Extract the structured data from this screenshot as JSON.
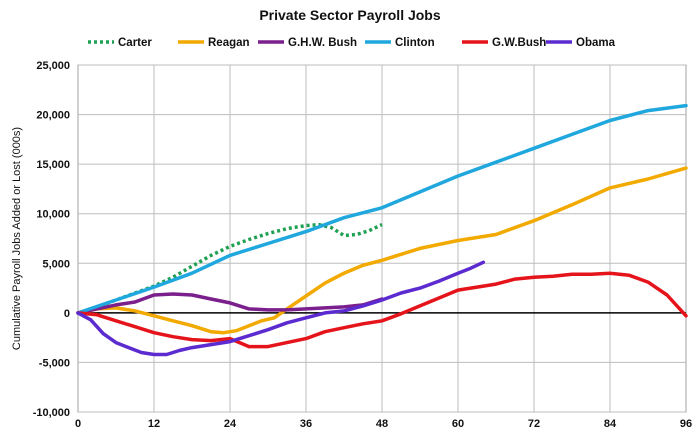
{
  "chart_data": {
    "type": "line",
    "title": "Private Sector Payroll Jobs",
    "ylabel": "Cumulative Payroll Jobs Added or Lost (000s)",
    "xlabel": "",
    "xlim": [
      0,
      96
    ],
    "ylim": [
      -10000,
      25000
    ],
    "x_ticks": [
      0,
      12,
      24,
      36,
      48,
      60,
      72,
      84,
      96
    ],
    "y_ticks": [
      -10000,
      -5000,
      0,
      5000,
      10000,
      15000,
      20000,
      25000
    ],
    "y_tick_labels": [
      "-10,000",
      "-5,000",
      "0",
      "5,000",
      "10,000",
      "15,000",
      "20,000",
      "25,000"
    ],
    "grid": true,
    "legend_position": "top",
    "series": [
      {
        "name": "Carter",
        "color": "#1fa052",
        "dashed": true,
        "points": [
          [
            0,
            0
          ],
          [
            3,
            600
          ],
          [
            6,
            1300
          ],
          [
            9,
            2000
          ],
          [
            12,
            2700
          ],
          [
            15,
            3600
          ],
          [
            18,
            4700
          ],
          [
            21,
            5800
          ],
          [
            24,
            6700
          ],
          [
            27,
            7400
          ],
          [
            30,
            8000
          ],
          [
            33,
            8500
          ],
          [
            36,
            8800
          ],
          [
            38,
            8900
          ],
          [
            40,
            8600
          ],
          [
            42,
            7800
          ],
          [
            44,
            7900
          ],
          [
            46,
            8300
          ],
          [
            48,
            8900
          ]
        ]
      },
      {
        "name": "Reagan",
        "color": "#f2a900",
        "dashed": false,
        "points": [
          [
            0,
            0
          ],
          [
            3,
            400
          ],
          [
            6,
            500
          ],
          [
            9,
            200
          ],
          [
            12,
            -300
          ],
          [
            15,
            -800
          ],
          [
            18,
            -1300
          ],
          [
            21,
            -1900
          ],
          [
            23,
            -2000
          ],
          [
            25,
            -1800
          ],
          [
            27,
            -1300
          ],
          [
            29,
            -800
          ],
          [
            31,
            -500
          ],
          [
            33,
            400
          ],
          [
            36,
            1700
          ],
          [
            39,
            3000
          ],
          [
            42,
            4000
          ],
          [
            45,
            4800
          ],
          [
            48,
            5300
          ],
          [
            54,
            6500
          ],
          [
            60,
            7300
          ],
          [
            66,
            7900
          ],
          [
            72,
            9300
          ],
          [
            78,
            10900
          ],
          [
            84,
            12600
          ],
          [
            90,
            13500
          ],
          [
            96,
            14600
          ]
        ]
      },
      {
        "name": "G.H.W. Bush",
        "color": "#7b1f8c",
        "dashed": false,
        "points": [
          [
            0,
            0
          ],
          [
            3,
            400
          ],
          [
            6,
            800
          ],
          [
            9,
            1100
          ],
          [
            12,
            1800
          ],
          [
            15,
            1900
          ],
          [
            18,
            1800
          ],
          [
            21,
            1400
          ],
          [
            24,
            1000
          ],
          [
            27,
            400
          ],
          [
            30,
            300
          ],
          [
            33,
            300
          ],
          [
            36,
            400
          ],
          [
            39,
            500
          ],
          [
            42,
            600
          ],
          [
            45,
            800
          ],
          [
            48,
            1400
          ]
        ]
      },
      {
        "name": "Clinton",
        "color": "#1fa7de",
        "dashed": false,
        "points": [
          [
            0,
            0
          ],
          [
            6,
            1300
          ],
          [
            12,
            2600
          ],
          [
            18,
            4000
          ],
          [
            24,
            5800
          ],
          [
            30,
            7000
          ],
          [
            36,
            8200
          ],
          [
            42,
            9600
          ],
          [
            48,
            10600
          ],
          [
            54,
            12200
          ],
          [
            60,
            13800
          ],
          [
            66,
            15200
          ],
          [
            72,
            16600
          ],
          [
            78,
            18000
          ],
          [
            84,
            19400
          ],
          [
            90,
            20400
          ],
          [
            96,
            20900
          ]
        ]
      },
      {
        "name": "G.W.Bush",
        "color": "#e5141b",
        "dashed": false,
        "points": [
          [
            0,
            0
          ],
          [
            3,
            -200
          ],
          [
            6,
            -800
          ],
          [
            9,
            -1400
          ],
          [
            12,
            -2000
          ],
          [
            15,
            -2400
          ],
          [
            18,
            -2700
          ],
          [
            21,
            -2800
          ],
          [
            24,
            -2600
          ],
          [
            27,
            -3400
          ],
          [
            30,
            -3400
          ],
          [
            33,
            -3000
          ],
          [
            36,
            -2600
          ],
          [
            39,
            -1900
          ],
          [
            42,
            -1500
          ],
          [
            45,
            -1100
          ],
          [
            48,
            -800
          ],
          [
            51,
            -100
          ],
          [
            54,
            700
          ],
          [
            57,
            1500
          ],
          [
            60,
            2300
          ],
          [
            63,
            2600
          ],
          [
            66,
            2900
          ],
          [
            69,
            3400
          ],
          [
            72,
            3600
          ],
          [
            75,
            3700
          ],
          [
            78,
            3900
          ],
          [
            81,
            3900
          ],
          [
            84,
            4000
          ],
          [
            87,
            3800
          ],
          [
            90,
            3100
          ],
          [
            93,
            1800
          ],
          [
            96,
            -300
          ]
        ]
      },
      {
        "name": "Obama",
        "color": "#5b2bd0",
        "dashed": false,
        "points": [
          [
            0,
            0
          ],
          [
            2,
            -700
          ],
          [
            4,
            -2100
          ],
          [
            6,
            -3000
          ],
          [
            8,
            -3500
          ],
          [
            10,
            -4000
          ],
          [
            12,
            -4200
          ],
          [
            14,
            -4200
          ],
          [
            16,
            -3800
          ],
          [
            18,
            -3500
          ],
          [
            20,
            -3300
          ],
          [
            22,
            -3100
          ],
          [
            24,
            -2900
          ],
          [
            27,
            -2300
          ],
          [
            30,
            -1700
          ],
          [
            33,
            -1000
          ],
          [
            36,
            -500
          ],
          [
            39,
            0
          ],
          [
            42,
            200
          ],
          [
            45,
            700
          ],
          [
            48,
            1300
          ],
          [
            51,
            2000
          ],
          [
            54,
            2500
          ],
          [
            57,
            3200
          ],
          [
            60,
            4000
          ],
          [
            62,
            4500
          ],
          [
            64,
            5100
          ]
        ]
      }
    ]
  }
}
